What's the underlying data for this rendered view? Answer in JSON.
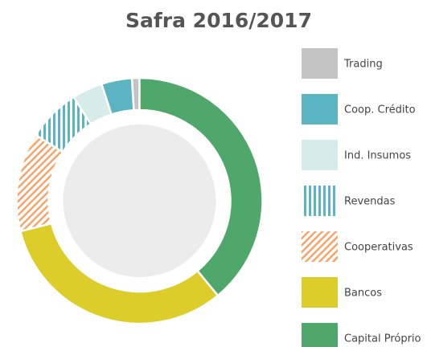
{
  "chart_data": {
    "type": "donut",
    "title": "Safra 2016/2017",
    "categories": [
      "Trading",
      "Coop. Crédito",
      "Ind. Insumos",
      "Revendas",
      "Cooperativas",
      "Bancos",
      "Capital Próprio"
    ],
    "values": [
      1,
      4,
      4,
      7,
      13,
      32,
      39
    ],
    "colors": [
      "#c4c4c4",
      "#5ab4c2",
      "#d6ecea",
      "#5ab4c2",
      "#f4a46c",
      "#dccd2a",
      "#4fa76b"
    ],
    "patterns": [
      null,
      null,
      null,
      "vertical",
      "diagonal",
      null,
      null
    ],
    "legend": "right"
  }
}
